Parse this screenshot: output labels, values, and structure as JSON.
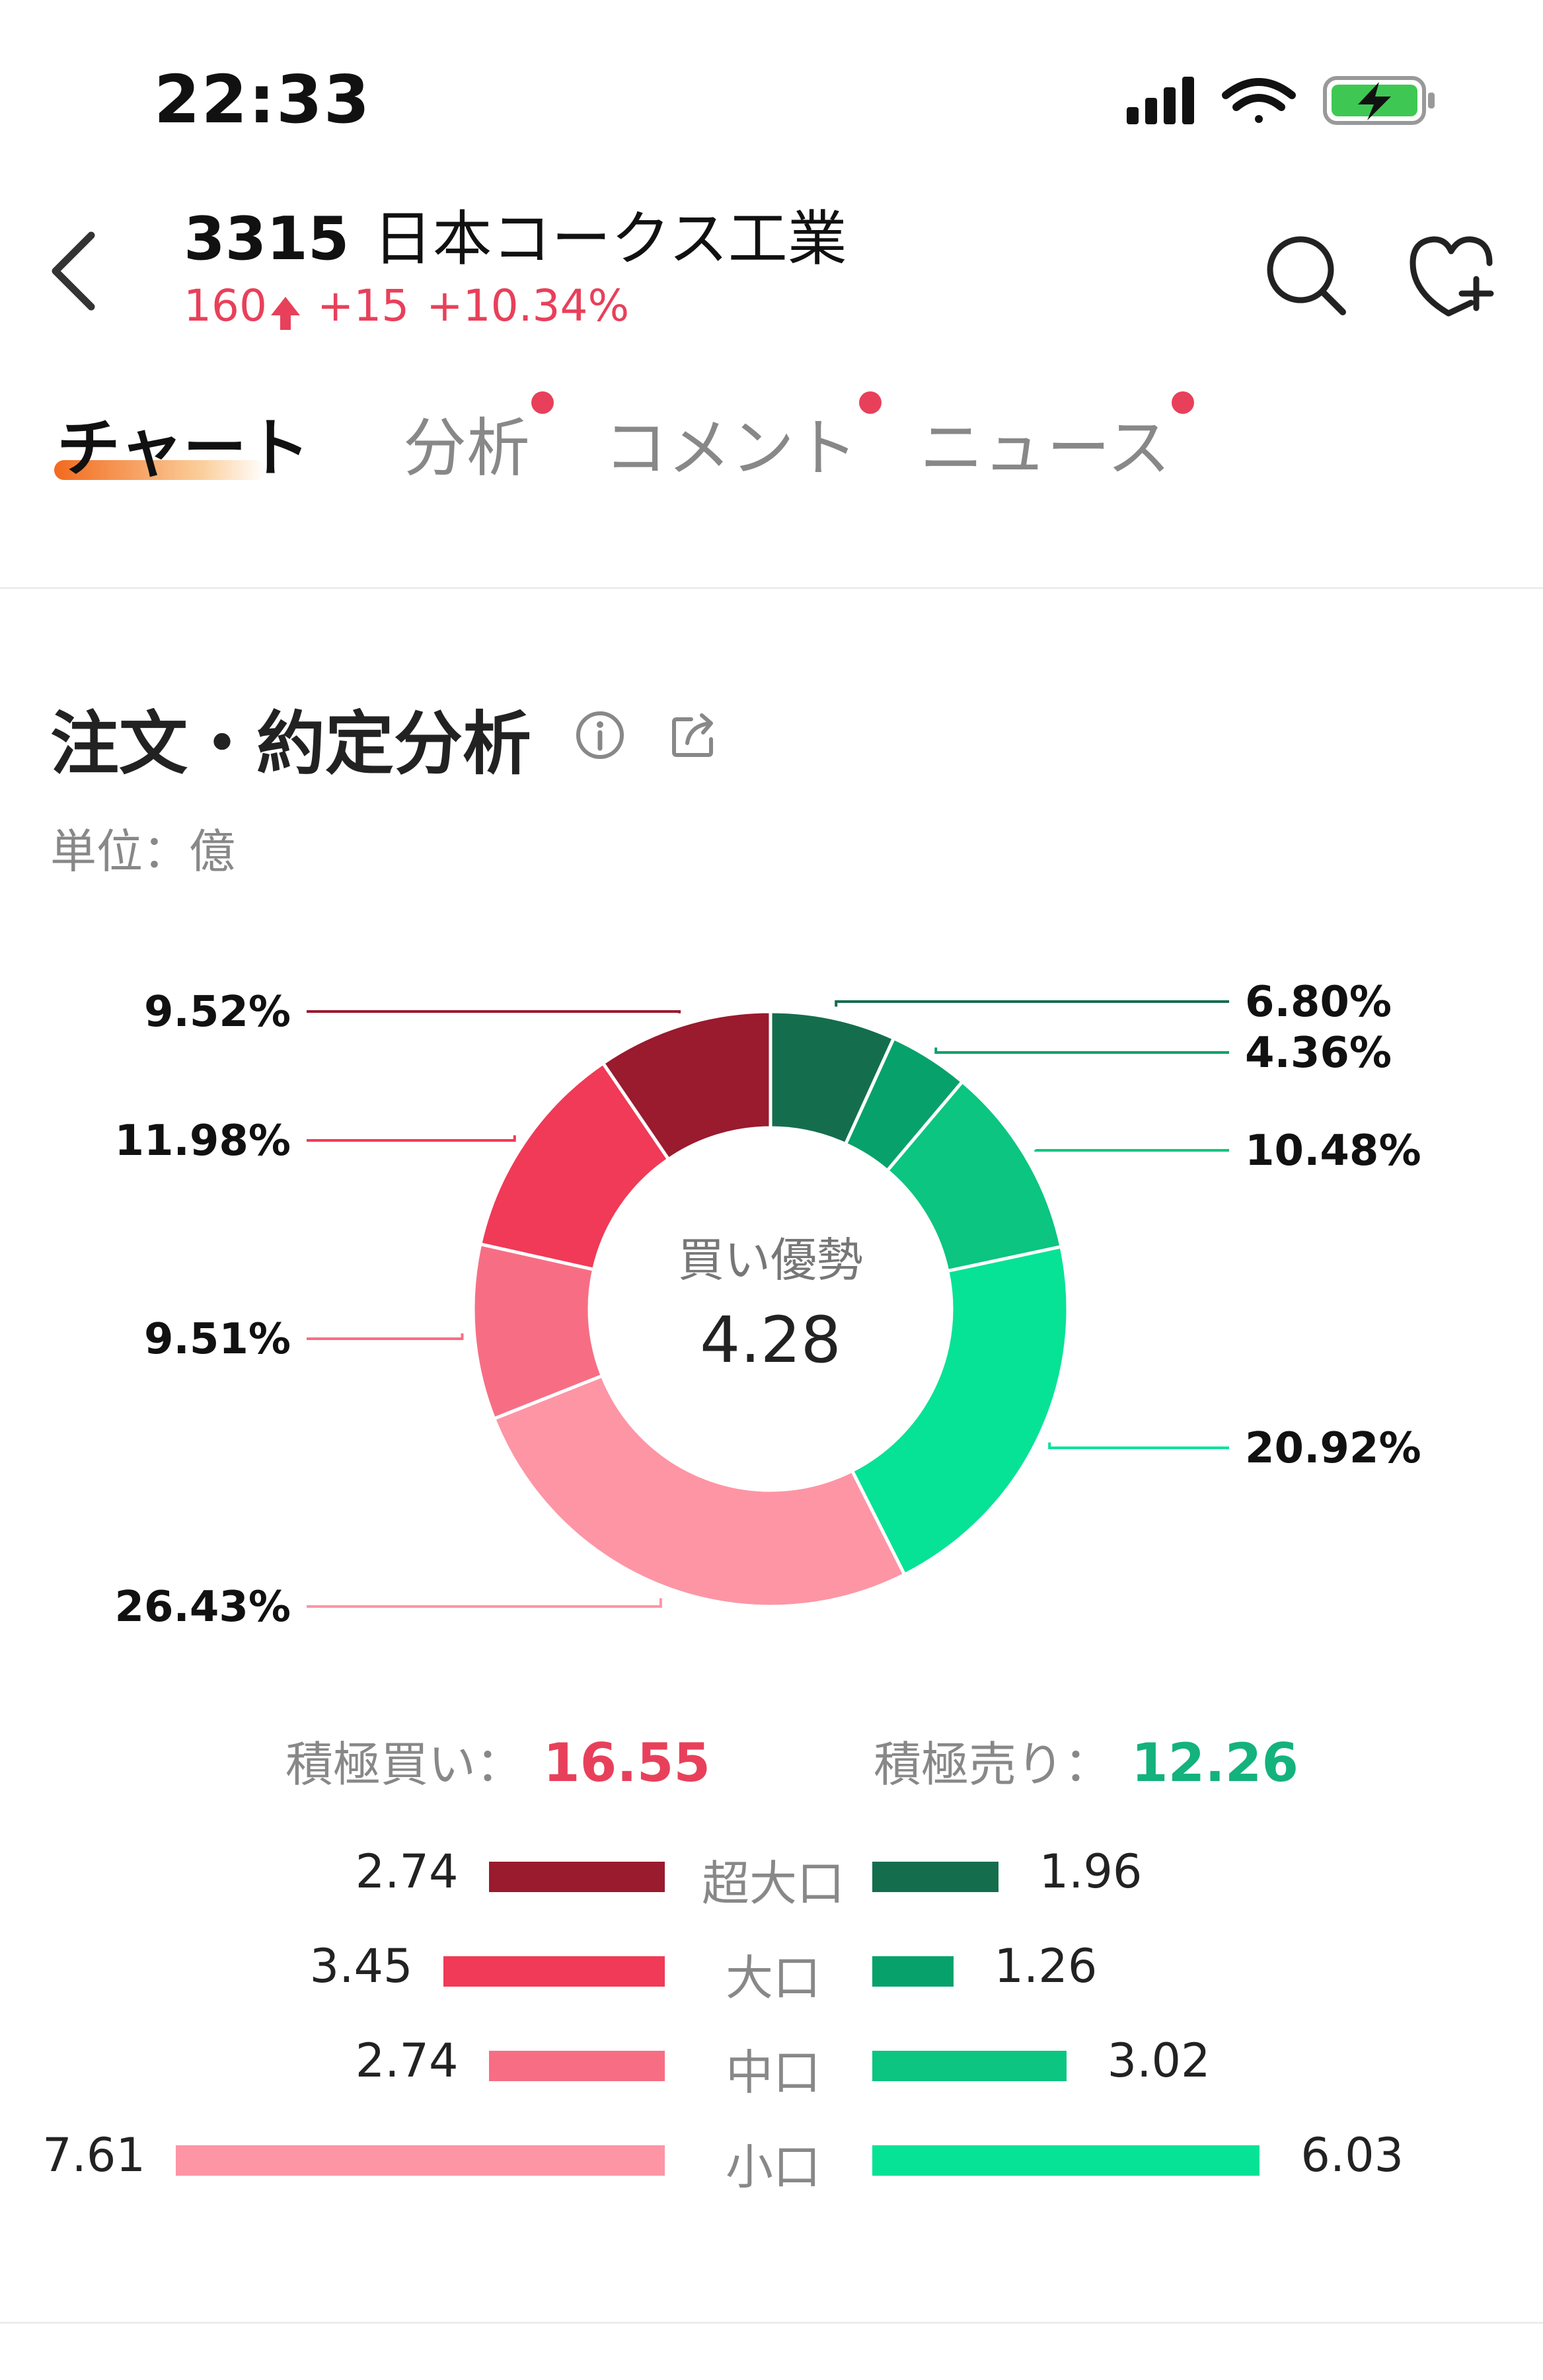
{
  "status_bar": {
    "time": "22:33"
  },
  "header": {
    "code": "3315",
    "name": "日本コークス工業",
    "price": "160",
    "change": "+15",
    "change_pct": "+10.34%",
    "accent_color": "#e8405a"
  },
  "tabs": [
    {
      "label": "チャート",
      "active": true,
      "dot": false
    },
    {
      "label": "分析",
      "active": false,
      "dot": true
    },
    {
      "label": "コメント",
      "active": false,
      "dot": true
    },
    {
      "label": "ニュース",
      "active": false,
      "dot": true
    }
  ],
  "section": {
    "title": "注文・約定分析",
    "unit": "単位：億"
  },
  "totals": {
    "buy_label": "積極買い：",
    "buy_value": "16.55",
    "sell_label": "積極売り：",
    "sell_value": "12.26"
  },
  "chart_data": {
    "type": "pie",
    "center_title": "買い優勢",
    "center_value": "4.28",
    "slices": [
      {
        "label": "6.80%",
        "value": 6.8,
        "color": "#146e4e"
      },
      {
        "label": "4.36%",
        "value": 4.36,
        "color": "#07a16b"
      },
      {
        "label": "10.48%",
        "value": 10.48,
        "color": "#0bc580"
      },
      {
        "label": "20.92%",
        "value": 20.92,
        "color": "#06e396"
      },
      {
        "label": "26.43%",
        "value": 26.43,
        "color": "#fd95a5"
      },
      {
        "label": "9.51%",
        "value": 9.51,
        "color": "#f76e84"
      },
      {
        "label": "11.98%",
        "value": 11.98,
        "color": "#f03a57"
      },
      {
        "label": "9.52%",
        "value": 9.52,
        "color": "#9a1a2e"
      }
    ]
  },
  "flow_rows": [
    {
      "category": "超大口",
      "buy": 2.74,
      "buy_label": "2.74",
      "sell": 1.96,
      "sell_label": "1.96",
      "buy_color": "#9a1a2e",
      "sell_color": "#146e4e"
    },
    {
      "category": "大口",
      "buy": 3.45,
      "buy_label": "3.45",
      "sell": 1.26,
      "sell_label": "1.26",
      "buy_color": "#f03a57",
      "sell_color": "#07a16b"
    },
    {
      "category": "中口",
      "buy": 2.74,
      "buy_label": "2.74",
      "sell": 3.02,
      "sell_label": "3.02",
      "buy_color": "#f76e84",
      "sell_color": "#0bc580"
    },
    {
      "category": "小口",
      "buy": 7.61,
      "buy_label": "7.61",
      "sell": 6.03,
      "sell_label": "6.03",
      "buy_color": "#fd95a5",
      "sell_color": "#06e396"
    }
  ]
}
